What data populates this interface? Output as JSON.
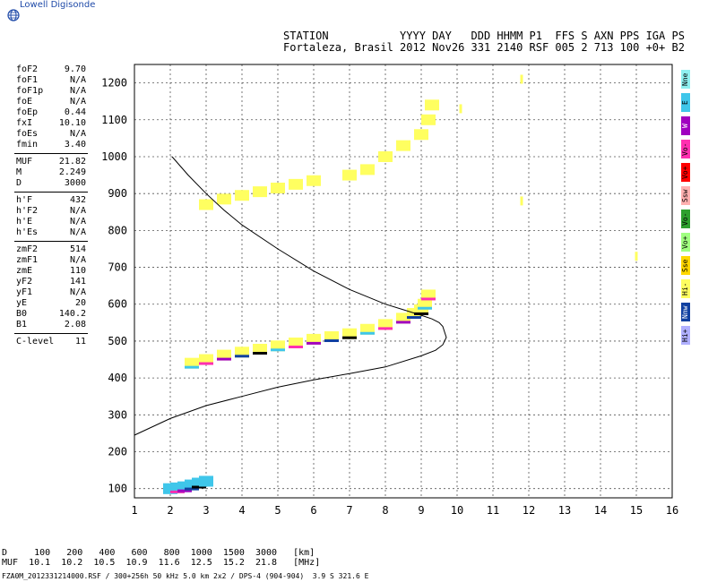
{
  "logo": {
    "text": "Lowell Digisonde",
    "icon": "globe-icon"
  },
  "header": {
    "labels_line": "STATION           YYYY DAY   DDD HHMM P1  FFS S AXN PPS IGA PS",
    "values_line": "Fortaleza, Brasil 2012 Nov26 331 2140 RSF 005 2 713 100 +0+ B2"
  },
  "params": [
    {
      "name": "foF2",
      "value": "9.70"
    },
    {
      "name": "foF1",
      "value": "N/A"
    },
    {
      "name": "foF1p",
      "value": "N/A"
    },
    {
      "name": "foE",
      "value": "N/A"
    },
    {
      "name": "foEp",
      "value": "0.44"
    },
    {
      "name": "fxI",
      "value": "10.10"
    },
    {
      "name": "foEs",
      "value": "N/A"
    },
    {
      "name": "fmin",
      "value": "3.40"
    },
    {
      "name": "MUF",
      "value": "21.82"
    },
    {
      "name": "M",
      "value": "2.249"
    },
    {
      "name": "D",
      "value": "3000"
    },
    {
      "name": "h'F",
      "value": "432"
    },
    {
      "name": "h'F2",
      "value": "N/A"
    },
    {
      "name": "h'E",
      "value": "N/A"
    },
    {
      "name": "h'Es",
      "value": "N/A"
    },
    {
      "name": "zmF2",
      "value": "514"
    },
    {
      "name": "zmF1",
      "value": "N/A"
    },
    {
      "name": "zmE",
      "value": "110"
    },
    {
      "name": "yF2",
      "value": "141"
    },
    {
      "name": "yF1",
      "value": "N/A"
    },
    {
      "name": "yE",
      "value": "20"
    },
    {
      "name": "B0",
      "value": "140.2"
    },
    {
      "name": "B1",
      "value": "2.08"
    },
    {
      "name": "C-level",
      "value": "11"
    }
  ],
  "legend": [
    {
      "label": "Nne",
      "color": "#8ff0f0"
    },
    {
      "label": "E",
      "color": "#3fc6ea"
    },
    {
      "label": "W",
      "color": "#a000c0"
    },
    {
      "label": "Vo-",
      "color": "#ff2fb0"
    },
    {
      "label": "Vo+",
      "color": "#ff0000"
    },
    {
      "label": "Ssw",
      "color": "#ffb0b0"
    },
    {
      "label": "Vo-",
      "color": "#2ea02e"
    },
    {
      "label": "Vo+",
      "color": "#a0ff80"
    },
    {
      "label": "Sse",
      "color": "#ffd700"
    },
    {
      "label": "Hi-",
      "color": "#ffff60"
    },
    {
      "label": "Nnw",
      "color": "#1040a0"
    },
    {
      "label": "Hi+",
      "color": "#b0b0ff"
    }
  ],
  "chart_data": {
    "type": "scatter",
    "xlim": [
      1,
      16
    ],
    "ylim": [
      75,
      1250
    ],
    "x_ticks": [
      1,
      2,
      3,
      4,
      5,
      6,
      7,
      8,
      9,
      10,
      11,
      12,
      13,
      14,
      15,
      16
    ],
    "y_ticks": [
      100,
      200,
      300,
      400,
      500,
      600,
      700,
      800,
      900,
      1000,
      1100,
      1200
    ],
    "grid": true,
    "profile_curve": {
      "x": [
        2.05,
        2.5,
        3.0,
        3.5,
        4.0,
        5.0,
        6.0,
        7.0,
        8.0,
        8.5,
        9.0,
        9.3,
        9.5,
        9.6,
        9.7,
        9.6,
        9.4,
        9.0,
        8.0,
        7.0,
        6.0,
        5.0,
        4.0,
        3.0,
        2.0,
        1.0
      ],
      "y": [
        1000,
        950,
        900,
        855,
        815,
        750,
        690,
        640,
        600,
        585,
        570,
        560,
        550,
        540,
        510,
        490,
        475,
        460,
        430,
        412,
        395,
        375,
        350,
        325,
        290,
        245
      ]
    },
    "traces": [
      {
        "name": "F-trace-o",
        "color": "#ffff60",
        "x": [
          2.6,
          3.0,
          3.5,
          4.0,
          4.5,
          5.0,
          5.5,
          6.0,
          6.5,
          7.0,
          7.5,
          8.0,
          8.5,
          8.8,
          9.0,
          9.1,
          9.2
        ],
        "y": [
          440,
          450,
          462,
          470,
          478,
          487,
          495,
          505,
          512,
          520,
          532,
          545,
          562,
          575,
          585,
          600,
          625
        ]
      },
      {
        "name": "F-trace-x",
        "color": "#ffff60",
        "x": [
          3.0,
          3.5,
          4.0,
          4.5,
          5.0,
          5.5,
          6.0,
          7.0,
          7.5,
          8.0,
          8.5,
          9.0,
          9.2,
          9.3
        ],
        "y": [
          870,
          885,
          895,
          905,
          915,
          925,
          935,
          950,
          965,
          1000,
          1030,
          1060,
          1100,
          1140
        ]
      },
      {
        "name": "E-region",
        "color": "#3fc6ea",
        "x": [
          2.0,
          2.2,
          2.4,
          2.6,
          2.8,
          3.0
        ],
        "y": [
          100,
          102,
          105,
          110,
          115,
          120
        ]
      },
      {
        "name": "isolated",
        "color": "#ffff60",
        "x": [
          10.1,
          11.8,
          11.8,
          15.0
        ],
        "y": [
          1130,
          1210,
          880,
          730
        ]
      }
    ],
    "title": ""
  },
  "footer": {
    "line1": "D     100   200   400   600   800  1000  1500  3000   [km]",
    "line2": "MUF  10.1  10.2  10.5  10.9  11.6  12.5  15.2  21.8   [MHz]",
    "id_line": "FZA0M_2012331214000.RSF / 300+256h 50 kHz 5.0 km 2x2 / DPS-4 (904-904)  3.9 S 321.6 E"
  }
}
